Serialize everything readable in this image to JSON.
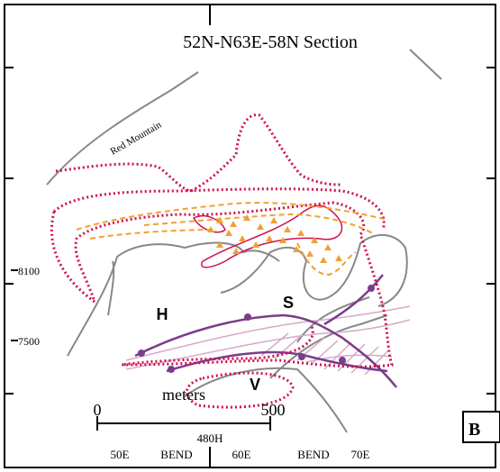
{
  "title": "52N-N63E-58N Section",
  "feature_label": "Red Mountain",
  "elevations": [
    "8100",
    "7500"
  ],
  "zones": [
    "H",
    "S",
    "V"
  ],
  "scale": {
    "start": "0",
    "unit": "meters",
    "end": "500"
  },
  "section_labels": {
    "center": "480H",
    "bottom": [
      "50E",
      "BEND",
      "60E",
      "BEND",
      "70E"
    ]
  },
  "panel_label": "B"
}
